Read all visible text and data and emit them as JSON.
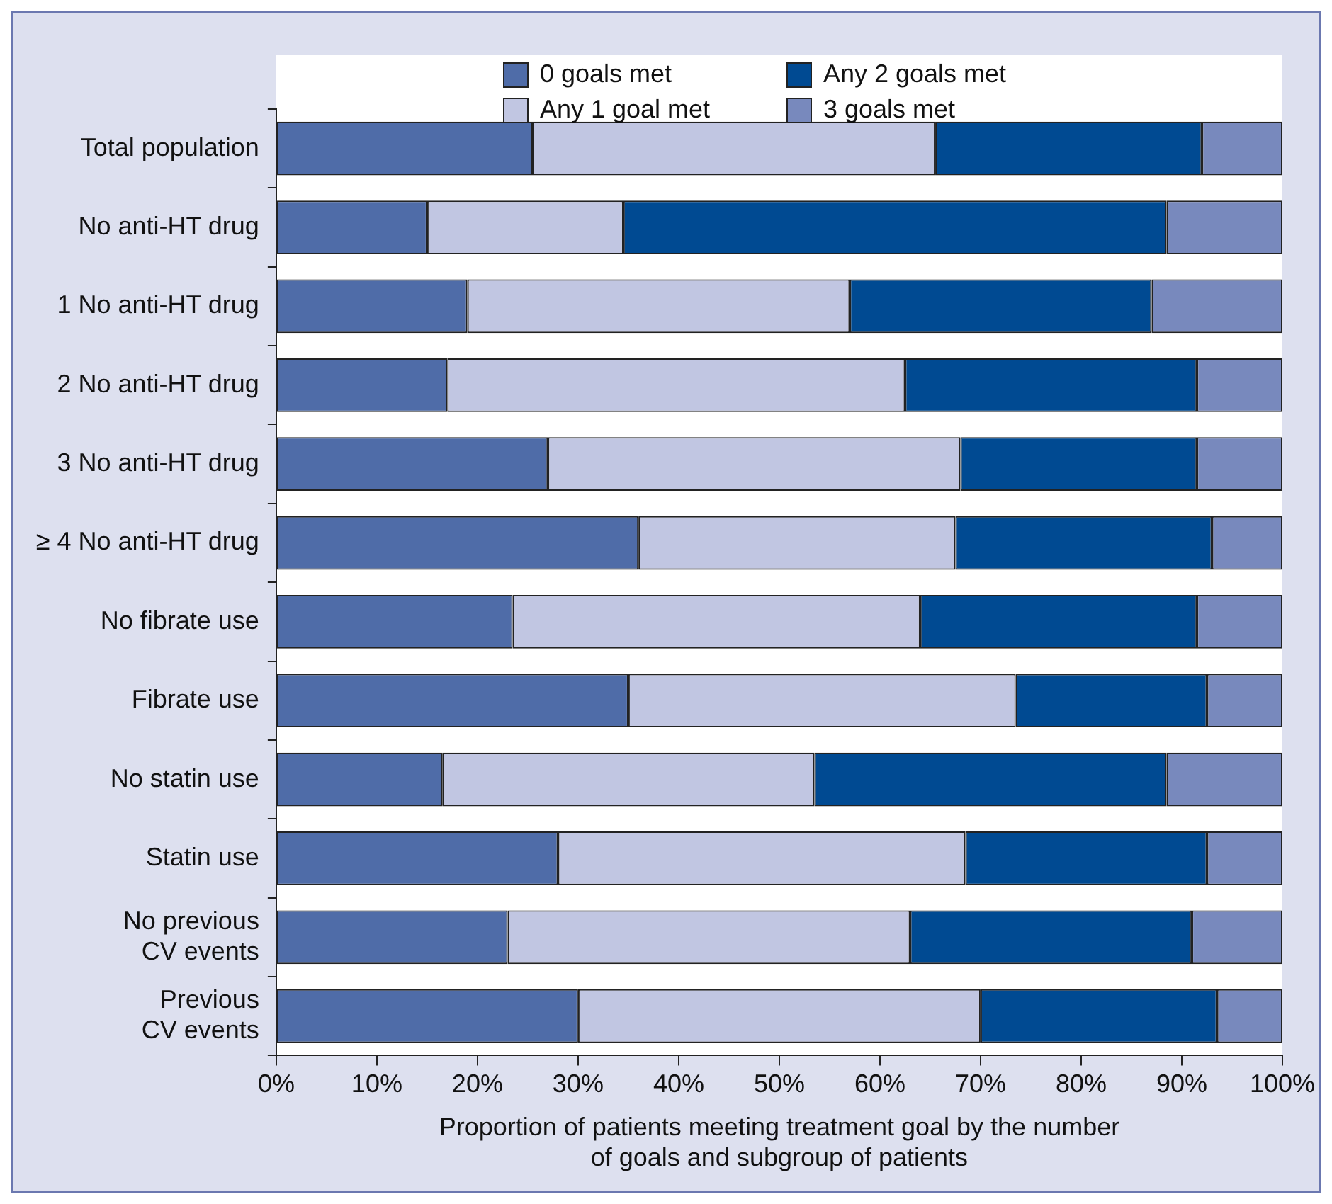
{
  "chart_data": {
    "type": "bar",
    "orientation": "horizontal",
    "stacked": true,
    "categories": [
      "Total population",
      "No anti-HT drug",
      "1 No anti-HT drug",
      "2 No anti-HT drug",
      "3 No anti-HT drug",
      "≥ 4 No anti-HT drug",
      "No fibrate use",
      "Fibrate use",
      "No statin use",
      "Statin use",
      "No previous\nCV events",
      "Previous\nCV events"
    ],
    "series": [
      {
        "name": "0 goals met",
        "color": "#4f6ca8",
        "values": [
          25.5,
          15,
          19,
          17,
          27,
          36,
          23.5,
          35,
          16.5,
          28,
          23,
          30
        ]
      },
      {
        "name": "Any 1 goal met",
        "color": "#c1c6e2",
        "values": [
          40,
          19.5,
          38,
          45.5,
          41,
          31.5,
          40.5,
          38.5,
          37,
          40.5,
          40,
          40
        ]
      },
      {
        "name": "Any 2 goals met",
        "color": "#004a92",
        "values": [
          26.5,
          54,
          30,
          29,
          23.5,
          25.5,
          27.5,
          19,
          35,
          24,
          28,
          23.5
        ]
      },
      {
        "name": "3 goals met",
        "color": "#7889bd",
        "values": [
          8,
          11.5,
          13,
          8.5,
          8.5,
          7,
          8.5,
          7.5,
          11.5,
          7.5,
          9,
          6.5
        ]
      }
    ],
    "xlabel": "Proportion of patients meeting treatment goal by the number\nof goals and subgroup of patients",
    "xlim": [
      0,
      100
    ],
    "xticks": [
      {
        "value": 0,
        "label": "0%"
      },
      {
        "value": 10,
        "label": "10%"
      },
      {
        "value": 20,
        "label": "20%"
      },
      {
        "value": 30,
        "label": "30%"
      },
      {
        "value": 40,
        "label": "40%"
      },
      {
        "value": 50,
        "label": "50%"
      },
      {
        "value": 60,
        "label": "60%"
      },
      {
        "value": 70,
        "label": "70%"
      },
      {
        "value": 80,
        "label": "80%"
      },
      {
        "value": 90,
        "label": "90%"
      },
      {
        "value": 100,
        "label": "100%"
      }
    ],
    "legend": "top",
    "grid": false
  }
}
